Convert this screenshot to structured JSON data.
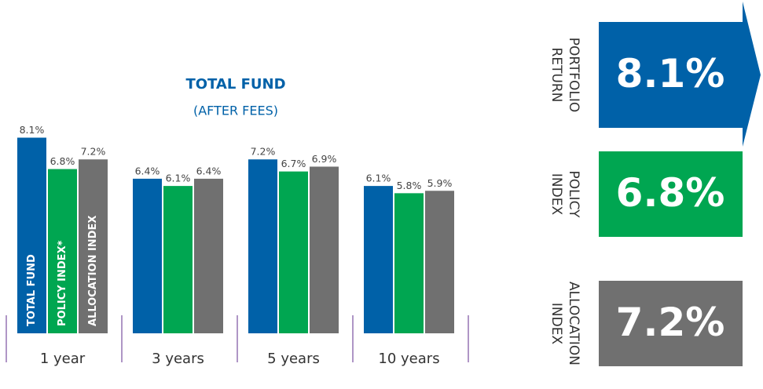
{
  "chart_data": {
    "type": "bar",
    "title": "TOTAL FUND",
    "subtitle": "(AFTER FEES)",
    "categories": [
      "1 year",
      "3 years",
      "5 years",
      "10 years"
    ],
    "series": [
      {
        "name": "TOTAL FUND",
        "color": "#0061a8",
        "values": [
          8.1,
          6.4,
          7.2,
          6.1
        ],
        "value_labels": [
          "8.1%",
          "6.4%",
          "7.2%",
          "6.1%"
        ]
      },
      {
        "name": "POLICY INDEX*",
        "color": "#00a651",
        "values": [
          6.8,
          6.1,
          6.7,
          5.8
        ],
        "value_labels": [
          "6.8%",
          "6.1%",
          "6.7%",
          "5.8%"
        ]
      },
      {
        "name": "ALLOCATION INDEX",
        "color": "#707070",
        "values": [
          7.2,
          6.4,
          6.9,
          5.9
        ],
        "value_labels": [
          "7.2%",
          "6.4%",
          "6.9%",
          "5.9%"
        ]
      }
    ]
  },
  "callouts": [
    {
      "label": [
        "PORTFOLIO",
        "RETURN"
      ],
      "value": "8.1%",
      "color": "#0061a8"
    },
    {
      "label": [
        "POLICY",
        "INDEX"
      ],
      "value": "6.8%",
      "color": "#00a651"
    },
    {
      "label": [
        "ALLOCATION",
        "INDEX"
      ],
      "value": "7.2%",
      "color": "#707070"
    }
  ]
}
